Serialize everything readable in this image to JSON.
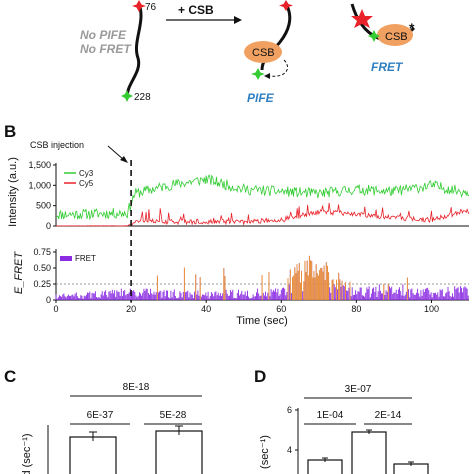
{
  "panel_a": {
    "label_no_pife": "No PIFE",
    "label_no_fret": "No FRET",
    "label_76": "76",
    "label_228": "228",
    "label_add_csb": "+ CSB",
    "label_csb_1": "CSB",
    "label_csb_2": "CSB",
    "label_star": "*",
    "label_pife": "PIFE",
    "label_fret": "FRET",
    "colors": {
      "blue_text": "#2f7fc0",
      "gray_text": "#9a9a9a",
      "csb_fill": "#f0a060",
      "cy3_green": "#33cc33",
      "cy5_red": "#e8232a"
    }
  },
  "panel_b": {
    "letter": "B",
    "injection_label": "CSB injection",
    "injection_time": 20
  },
  "panel_c": {
    "letter": "C",
    "ylabel_fragment": "d (sec⁻¹)",
    "pvalues": [
      "8E-18",
      "6E-37",
      "5E-28"
    ]
  },
  "panel_d": {
    "letter": "D",
    "ylabel_fragment": "(sec⁻¹)",
    "pvalues": [
      "3E-07",
      "1E-04",
      "2E-14"
    ]
  },
  "chart_data": [
    {
      "type": "line",
      "ylabel": "Intensity (a.u.)",
      "xlim": [
        0,
        110
      ],
      "ylim": [
        0,
        1500
      ],
      "yticks": [
        "0",
        "500",
        "1,000",
        "1,500"
      ],
      "legend_position": "top-left",
      "series": [
        {
          "name": "Cy3",
          "color": "#33cc33",
          "t": [
            0,
            10,
            19,
            21,
            30,
            40,
            50,
            60,
            70,
            80,
            90,
            100,
            108
          ],
          "y": [
            280,
            300,
            320,
            800,
            1000,
            1150,
            900,
            850,
            800,
            900,
            850,
            1000,
            850
          ]
        },
        {
          "name": "Cy5",
          "color": "#e8232a",
          "t": [
            0,
            10,
            19,
            21,
            30,
            40,
            50,
            60,
            70,
            80,
            90,
            100,
            108
          ],
          "y": [
            0,
            0,
            0,
            120,
            100,
            110,
            100,
            150,
            350,
            300,
            200,
            150,
            350
          ]
        }
      ]
    },
    {
      "type": "line",
      "ylabel": "E_FRET",
      "xlabel": "Time (sec)",
      "xlim": [
        0,
        110
      ],
      "ylim": [
        0,
        0.75
      ],
      "yticks": [
        "0",
        "0.25",
        "0.50",
        "0.75"
      ],
      "xticks": [
        "0",
        "20",
        "40",
        "60",
        "80",
        "100"
      ],
      "threshold": 0.25,
      "legend_position": "top-left",
      "series": [
        {
          "name": "FRET",
          "color": "#8a2be2",
          "t": [
            0,
            20,
            40,
            60,
            65,
            70,
            80,
            90,
            100,
            108
          ],
          "y": [
            0.05,
            0.1,
            0.08,
            0.1,
            0.35,
            0.4,
            0.1,
            0.15,
            0.1,
            0.12
          ]
        }
      ]
    },
    {
      "type": "bar",
      "ylabel": "(sec⁻¹)",
      "categories": [
        "",
        ""
      ],
      "values": [
        0.29,
        0.31
      ],
      "color": "#ffffff"
    },
    {
      "type": "bar",
      "ylabel": "(sec⁻¹)",
      "categories": [
        "",
        "",
        ""
      ],
      "values": [
        3.5,
        4.9,
        3.3
      ],
      "yticks": [
        "2",
        "4",
        "6"
      ],
      "color": "#ffffff"
    }
  ]
}
